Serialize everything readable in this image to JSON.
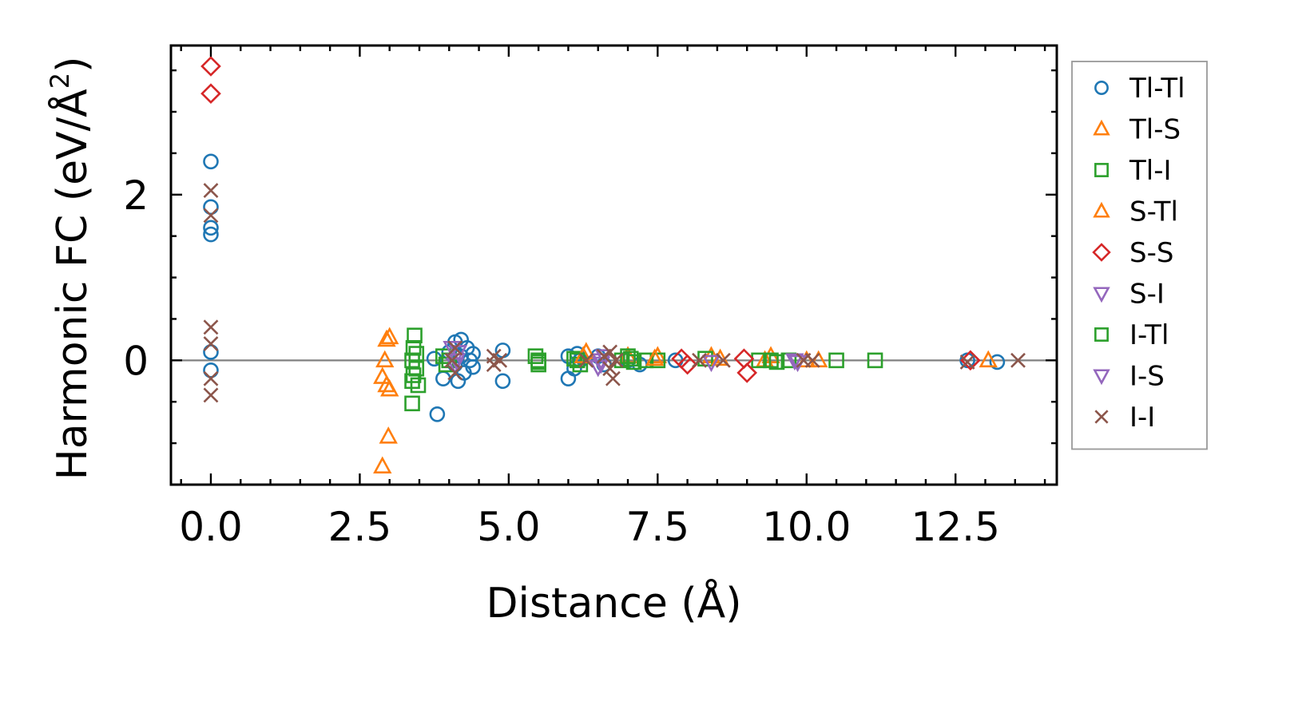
{
  "chart_data": {
    "type": "scatter",
    "xlabel": "Distance (Å)",
    "ylabel": "Harmonic FC (eV/Å",
    "ylabel_sup": "2",
    "ylabel_close": ")",
    "xlim": [
      -0.67,
      14.2
    ],
    "ylim": [
      -1.5,
      3.8
    ],
    "x_ticks": [
      0.0,
      2.5,
      5.0,
      7.5,
      10.0,
      12.5
    ],
    "x_tick_labels": [
      "0.0",
      "2.5",
      "5.0",
      "7.5",
      "10.0",
      "12.5"
    ],
    "y_ticks": [
      0,
      2
    ],
    "y_tick_labels": [
      "0",
      "2"
    ],
    "zero_line": 0,
    "legend_position": "outside-right",
    "series": [
      {
        "name": "Tl-Tl",
        "marker": "circle",
        "color": "#1f77b4",
        "points": [
          [
            0,
            2.4
          ],
          [
            0,
            1.85
          ],
          [
            0,
            1.6
          ],
          [
            0,
            1.52
          ],
          [
            0,
            0.1
          ],
          [
            0,
            -0.12
          ],
          [
            3.8,
            -0.65
          ],
          [
            3.75,
            0.02
          ],
          [
            3.9,
            -0.22
          ],
          [
            4.0,
            0.1
          ],
          [
            4.1,
            -0.05
          ],
          [
            4.1,
            0.22
          ],
          [
            4.15,
            -0.25
          ],
          [
            4.2,
            0.05
          ],
          [
            4.2,
            0.25
          ],
          [
            4.25,
            -0.15
          ],
          [
            4.3,
            0.15
          ],
          [
            4.35,
            0.0
          ],
          [
            4.4,
            -0.08
          ],
          [
            4.4,
            0.08
          ],
          [
            4.9,
            0.12
          ],
          [
            4.9,
            -0.25
          ],
          [
            6.0,
            -0.22
          ],
          [
            6.0,
            0.05
          ],
          [
            6.1,
            -0.1
          ],
          [
            6.15,
            0.08
          ],
          [
            6.2,
            0.0
          ],
          [
            6.5,
            0.05
          ],
          [
            6.6,
            -0.05
          ],
          [
            7.0,
            0.0
          ],
          [
            7.2,
            -0.05
          ],
          [
            7.8,
            0.0
          ],
          [
            13.2,
            -0.02
          ],
          [
            12.7,
            0.0
          ]
        ]
      },
      {
        "name": "Tl-S",
        "marker": "triangle-up",
        "color": "#ff7f0e",
        "points": [
          [
            2.88,
            -1.28
          ],
          [
            2.88,
            -0.2
          ],
          [
            2.92,
            0.0
          ],
          [
            2.95,
            0.25
          ],
          [
            2.95,
            -0.3
          ],
          [
            2.98,
            -0.92
          ],
          [
            3.0,
            0.28
          ],
          [
            3.0,
            -0.35
          ],
          [
            6.3,
            0.1
          ],
          [
            7.0,
            0.05
          ],
          [
            7.5,
            0.05
          ],
          [
            8.4,
            0.05
          ],
          [
            9.3,
            0.0
          ],
          [
            9.4,
            0.05
          ],
          [
            10.2,
            0.0
          ],
          [
            13.05,
            0.0
          ]
        ]
      },
      {
        "name": "Tl-I",
        "marker": "square",
        "color": "#2ca02c",
        "points": [
          [
            3.38,
            -0.52
          ],
          [
            3.38,
            -0.25
          ],
          [
            3.38,
            0.0
          ],
          [
            3.4,
            0.15
          ],
          [
            3.42,
            0.3
          ],
          [
            3.45,
            -0.1
          ],
          [
            3.45,
            0.08
          ],
          [
            3.48,
            -0.3
          ],
          [
            3.9,
            0.05
          ],
          [
            3.95,
            -0.05
          ],
          [
            4.0,
            0.0
          ],
          [
            5.45,
            0.05
          ],
          [
            5.5,
            -0.05
          ],
          [
            5.5,
            0.0
          ],
          [
            6.1,
            0.02
          ],
          [
            6.2,
            -0.05
          ],
          [
            6.9,
            0.0
          ],
          [
            7.0,
            0.05
          ],
          [
            7.1,
            -0.02
          ],
          [
            7.3,
            0.0
          ],
          [
            7.5,
            0.0
          ],
          [
            8.3,
            0.02
          ],
          [
            9.2,
            0.0
          ],
          [
            9.5,
            -0.02
          ],
          [
            9.7,
            0.0
          ],
          [
            10.5,
            0.0
          ],
          [
            11.15,
            0.0
          ]
        ]
      },
      {
        "name": "S-Tl",
        "marker": "triangle-up",
        "color": "#ff7f0e",
        "points": [
          [
            6.25,
            0.05
          ],
          [
            7.45,
            0.02
          ],
          [
            8.55,
            0.02
          ],
          [
            10.0,
            0.0
          ]
        ]
      },
      {
        "name": "S-S",
        "marker": "diamond",
        "color": "#d62728",
        "points": [
          [
            0,
            3.55
          ],
          [
            0,
            3.22
          ],
          [
            7.9,
            0.02
          ],
          [
            8.0,
            -0.05
          ],
          [
            8.95,
            0.02
          ],
          [
            9.0,
            -0.15
          ],
          [
            12.75,
            0.0
          ]
        ]
      },
      {
        "name": "S-I",
        "marker": "triangle-down",
        "color": "#9467bd",
        "points": [
          [
            4.05,
            0.15
          ],
          [
            4.1,
            -0.05
          ],
          [
            4.15,
            0.1
          ],
          [
            6.5,
            -0.08
          ],
          [
            6.55,
            0.0
          ],
          [
            6.6,
            0.05
          ],
          [
            8.4,
            -0.02
          ],
          [
            9.8,
            0.0
          ]
        ]
      },
      {
        "name": "I-Tl",
        "marker": "square",
        "color": "#2ca02c",
        "points": [
          [
            3.4,
            -0.18
          ],
          [
            5.5,
            -0.02
          ],
          [
            6.15,
            0.0
          ],
          [
            7.05,
            0.02
          ],
          [
            9.4,
            0.0
          ]
        ]
      },
      {
        "name": "I-S",
        "marker": "triangle-down",
        "color": "#9467bd",
        "points": [
          [
            4.12,
            0.0
          ],
          [
            6.55,
            -0.04
          ],
          [
            9.85,
            -0.02
          ]
        ]
      },
      {
        "name": "I-I",
        "marker": "x",
        "color": "#8c564b",
        "points": [
          [
            0,
            2.05
          ],
          [
            0,
            1.75
          ],
          [
            0,
            0.4
          ],
          [
            0,
            0.2
          ],
          [
            0,
            -0.22
          ],
          [
            0,
            -0.42
          ],
          [
            4.05,
            0.0
          ],
          [
            4.1,
            0.15
          ],
          [
            4.1,
            -0.15
          ],
          [
            4.75,
            0.05
          ],
          [
            4.75,
            -0.05
          ],
          [
            4.85,
            0.0
          ],
          [
            6.3,
            0.0
          ],
          [
            6.6,
            0.05
          ],
          [
            6.7,
            -0.1
          ],
          [
            6.7,
            0.1
          ],
          [
            6.75,
            -0.22
          ],
          [
            6.8,
            0.0
          ],
          [
            8.2,
            0.0
          ],
          [
            8.6,
            0.0
          ],
          [
            9.95,
            0.0
          ],
          [
            10.1,
            0.0
          ],
          [
            12.7,
            -0.02
          ],
          [
            13.55,
            0.0
          ]
        ]
      }
    ]
  }
}
